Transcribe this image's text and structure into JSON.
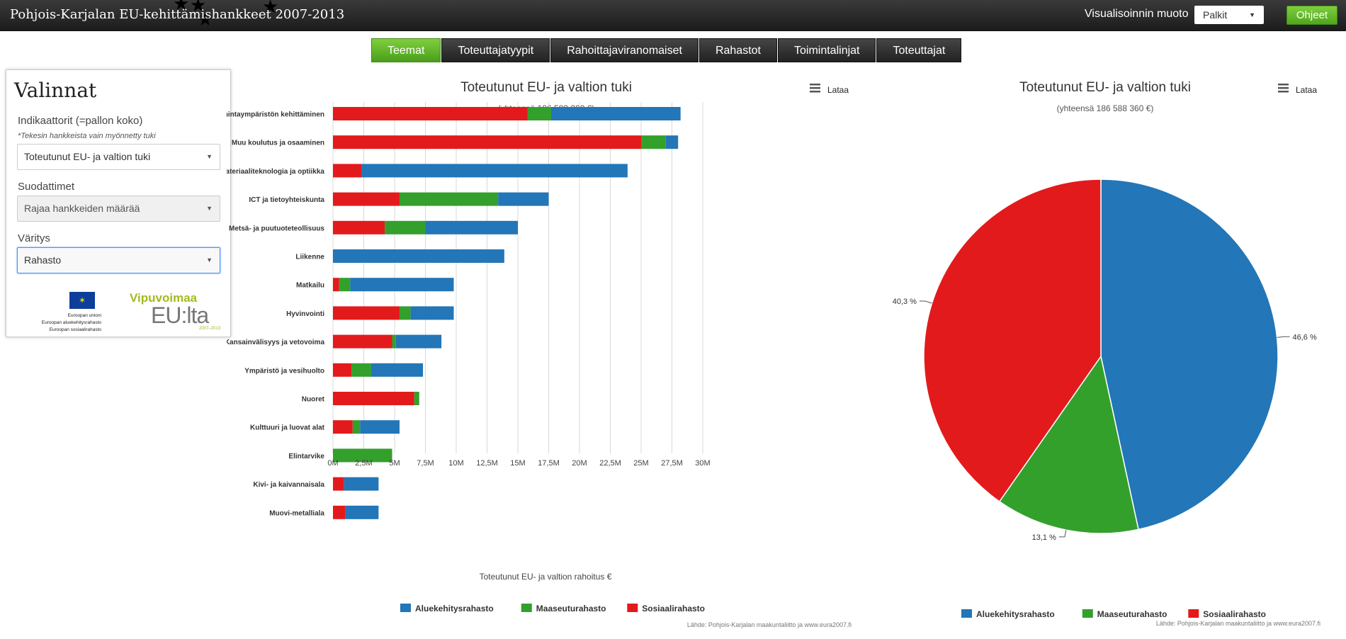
{
  "header": {
    "app_title": "Pohjois-Karjalan EU-kehittämishankkeet 2007-2013",
    "vis_label": "Visualisoinnin muoto",
    "vis_select_value": "Palkit",
    "help_button": "Ohjeet"
  },
  "tabs": [
    {
      "label": "Teemat",
      "active": true
    },
    {
      "label": "Toteuttajatyypit",
      "active": false
    },
    {
      "label": "Rahoittajaviranomaiset",
      "active": false
    },
    {
      "label": "Rahastot",
      "active": false
    },
    {
      "label": "Toimintalinjat",
      "active": false
    },
    {
      "label": "Toteuttajat",
      "active": false
    }
  ],
  "panel": {
    "title": "Valinnat",
    "indicator_label": "Indikaattorit (=pallon koko)",
    "indicator_note": "*Tekesin hankkeista vain myönnetty tuki",
    "indicator_value": "Toteutunut EU- ja valtion tuki",
    "filters_label": "Suodattimet",
    "filters_value": "Rajaa hankkeiden määrää",
    "coloring_label": "Väritys",
    "coloring_value": "Rahasto",
    "eu_logo_lines": [
      "Euroopan unioni",
      "Euroopan aluekehitysrahasto",
      "Euroopan sosiaalirahasto"
    ],
    "vipu_title": "Vipuvoimaa",
    "vipu_sub": "EU:lta",
    "vipu_years": "2007–2013"
  },
  "colors": {
    "Aluekehitysrahasto": "#2376b7",
    "Maaseuturahasto": "#33a02c",
    "Sosiaalirahasto": "#e31a1c"
  },
  "chart_data": [
    {
      "type": "bar",
      "orientation": "horizontal",
      "stacked": true,
      "title": "Toteutunut EU- ja valtion tuki",
      "subtitle": "(yhteensä 186 588 360 €)",
      "menu_label": "Lataa",
      "xlabel": "Toteutunut EU- ja valtion rahoitus €",
      "xlim": [
        0,
        30000000
      ],
      "x_ticks": [
        "0M",
        "2,5M",
        "5M",
        "7,5M",
        "10M",
        "12,5M",
        "15M",
        "17,5M",
        "20M",
        "22,5M",
        "25M",
        "27,5M",
        "30M"
      ],
      "grid": true,
      "legend_position": "bottom",
      "source": "Lähde: Pohjois-Karjalan maakuntaliitto ja www.eura2007.fi",
      "categories": [
        "Yritysten toimintaympäristön kehittäminen",
        "Muu koulutus ja osaaminen",
        "Materiaaliteknologia ja optiikka",
        "ICT ja tietoyhteiskunta",
        "Metsä- ja puutuoteteollisuus",
        "Liikenne",
        "Matkailu",
        "Hyvinvointi",
        "Kansainvälisyys ja vetovoima",
        "Ympäristö ja vesihuolto",
        "Nuoret",
        "Kulttuuri ja luovat alat",
        "Elintarvike",
        "Kivi- ja kaivannaisala",
        "Muovi-metalliala"
      ],
      "series": [
        {
          "name": "Sosiaalirahasto",
          "values": [
            15800000,
            25000000,
            2300000,
            5400000,
            4200000,
            0,
            500000,
            5400000,
            4800000,
            1500000,
            6600000,
            1600000,
            0,
            900000,
            1000000
          ]
        },
        {
          "name": "Maaseuturahasto",
          "values": [
            1900000,
            2000000,
            0,
            8000000,
            3300000,
            0,
            900000,
            900000,
            300000,
            1600000,
            400000,
            600000,
            4800000,
            0,
            0
          ]
        },
        {
          "name": "Aluekehitysrahasto",
          "values": [
            10500000,
            1000000,
            21600000,
            4100000,
            7500000,
            13900000,
            8400000,
            3500000,
            3700000,
            4200000,
            0,
            3200000,
            0,
            2800000,
            2700000
          ]
        }
      ],
      "legend": [
        "Aluekehitysrahasto",
        "Maaseuturahasto",
        "Sosiaalirahasto"
      ]
    },
    {
      "type": "pie",
      "title": "Toteutunut EU- ja valtion tuki",
      "subtitle": "(yhteensä 186 588 360 €)",
      "menu_label": "Lataa",
      "source": "Lähde: Pohjois-Karjalan maakuntaliitto ja www.eura2007.fi",
      "legend_position": "bottom",
      "slices": [
        {
          "name": "Aluekehitysrahasto",
          "value": 46.6,
          "label": "46,6 %"
        },
        {
          "name": "Maaseuturahasto",
          "value": 13.1,
          "label": "13,1 %"
        },
        {
          "name": "Sosiaalirahasto",
          "value": 40.3,
          "label": "40,3 %"
        }
      ],
      "legend": [
        "Aluekehitysrahasto",
        "Maaseuturahasto",
        "Sosiaalirahasto"
      ]
    }
  ]
}
